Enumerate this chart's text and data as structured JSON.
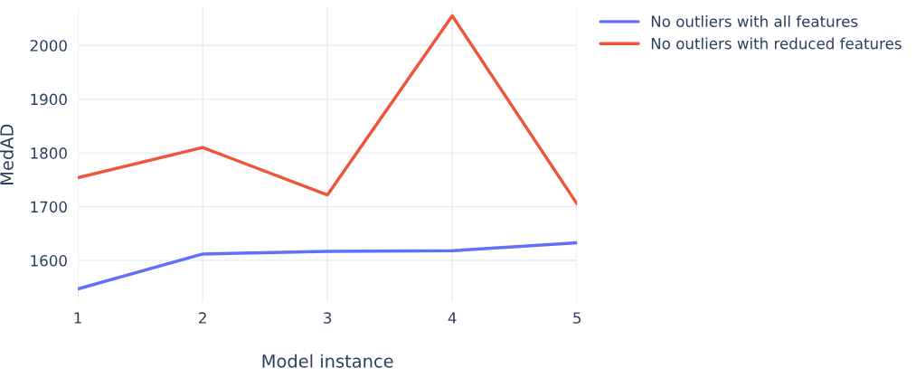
{
  "chart_data": {
    "type": "line",
    "xlabel": "Model instance",
    "ylabel": "MedAD",
    "x": [
      1,
      2,
      3,
      4,
      5
    ],
    "series": [
      {
        "name": "No outliers with all features",
        "color": "#636efa",
        "values": [
          1547,
          1612,
          1617,
          1618,
          1633
        ]
      },
      {
        "name": "No outliers with reduced features",
        "color": "#ef553b",
        "values": [
          1754,
          1810,
          1722,
          2055,
          1705
        ]
      }
    ],
    "xlim": [
      1,
      5
    ],
    "xticks": [
      1,
      2,
      3,
      4,
      5
    ],
    "ylim": [
      1523,
      2070
    ],
    "yticks": [
      1600,
      1700,
      1800,
      1900,
      2000
    ],
    "grid": true,
    "legend": "top right",
    "marker": "none",
    "line_style": "solid"
  }
}
